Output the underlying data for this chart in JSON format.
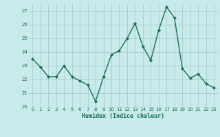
{
  "x": [
    0,
    1,
    2,
    3,
    4,
    5,
    6,
    7,
    8,
    9,
    10,
    11,
    12,
    13,
    14,
    15,
    16,
    17,
    18,
    19,
    20,
    21,
    22,
    23
  ],
  "y": [
    23.5,
    22.9,
    22.2,
    22.2,
    23.0,
    22.2,
    21.9,
    21.6,
    20.4,
    22.2,
    23.8,
    24.1,
    25.0,
    26.1,
    24.4,
    23.4,
    25.6,
    27.3,
    26.5,
    22.8,
    22.1,
    22.4,
    21.7,
    21.4
  ],
  "xlabel": "Humidex (Indice chaleur)",
  "ylim": [
    20,
    27.5
  ],
  "yticks": [
    20,
    21,
    22,
    23,
    24,
    25,
    26,
    27
  ],
  "xticks": [
    0,
    1,
    2,
    3,
    4,
    5,
    6,
    7,
    8,
    9,
    10,
    11,
    12,
    13,
    14,
    15,
    16,
    17,
    18,
    19,
    20,
    21,
    22,
    23
  ],
  "line_color": "#1a6b5a",
  "marker_color": "#1a6b5a",
  "bg_color": "#c8eaea",
  "grid_color": "#a8cccc",
  "label_color": "#1a6b5a"
}
